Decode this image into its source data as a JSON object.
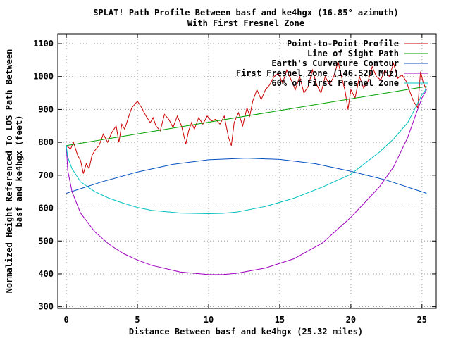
{
  "chart_data": {
    "type": "line",
    "title": [
      "SPLAT! Path Profile Between basf and ke4hgx (16.85° azimuth)",
      "With First Fresnel Zone"
    ],
    "xlabel": "Distance Between basf and ke4hgx (25.32 miles)",
    "ylabel": [
      "Normalized Height Referenced To LOS Path Between",
      "basf and ke4hgx (feet)"
    ],
    "xlim": [
      -0.6,
      26.0
    ],
    "ylim": [
      295,
      1130
    ],
    "xticks": [
      0,
      5,
      10,
      15,
      20,
      25
    ],
    "yticks": [
      300,
      400,
      500,
      600,
      700,
      800,
      900,
      1000,
      1100
    ],
    "grid": true,
    "legend_position": "top-right",
    "series": [
      {
        "name": "Point-to-Point Profile",
        "color": "#cc0000",
        "x": [
          0,
          0.3,
          0.5,
          0.8,
          1.0,
          1.2,
          1.4,
          1.6,
          1.8,
          2.0,
          2.3,
          2.6,
          2.9,
          3.2,
          3.5,
          3.7,
          3.9,
          4.1,
          4.4,
          4.6,
          4.8,
          5.0,
          5.3,
          5.6,
          5.9,
          6.1,
          6.3,
          6.6,
          6.9,
          7.2,
          7.5,
          7.8,
          8.1,
          8.4,
          8.6,
          8.8,
          9.0,
          9.3,
          9.6,
          9.9,
          10.2,
          10.5,
          10.8,
          11.1,
          11.4,
          11.6,
          11.8,
          12.1,
          12.4,
          12.7,
          12.9,
          13.1,
          13.4,
          13.7,
          14.0,
          14.3,
          14.6,
          14.9,
          15.2,
          15.5,
          15.8,
          16.1,
          16.4,
          16.7,
          17.0,
          17.3,
          17.6,
          17.9,
          18.2,
          18.5,
          18.8,
          19.1,
          19.4,
          19.6,
          19.8,
          20.0,
          20.3,
          20.6,
          20.9,
          21.2,
          21.5,
          21.8,
          22.1,
          22.4,
          22.7,
          23.0,
          23.3,
          23.6,
          23.9,
          24.1,
          24.4,
          24.7,
          24.9,
          25.1,
          25.32
        ],
        "values": [
          790,
          780,
          800,
          760,
          745,
          705,
          735,
          720,
          760,
          775,
          790,
          825,
          800,
          830,
          850,
          800,
          855,
          840,
          880,
          905,
          915,
          925,
          905,
          880,
          860,
          875,
          850,
          835,
          885,
          870,
          845,
          880,
          850,
          795,
          835,
          860,
          840,
          875,
          855,
          880,
          865,
          870,
          855,
          880,
          815,
          790,
          860,
          890,
          850,
          905,
          880,
          925,
          960,
          930,
          960,
          975,
          1000,
          1010,
          980,
          1020,
          990,
          960,
          1000,
          950,
          970,
          1020,
          975,
          950,
          1000,
          975,
          1000,
          1045,
          990,
          955,
          900,
          960,
          935,
          1000,
          965,
          985,
          1030,
          1000,
          990,
          1020,
          1000,
          1040,
          995,
          1005,
          985,
          960,
          925,
          905,
          1015,
          980,
          960
        ]
      },
      {
        "name": "Line of Sight Path",
        "color": "#00a000",
        "x": [
          0,
          25.32
        ],
        "values": [
          790,
          970
        ]
      },
      {
        "name": "Earth's Curvature Contour",
        "color": "#0050c0",
        "x": [
          0,
          2.5,
          5,
          7.5,
          10,
          12.66,
          15,
          17.5,
          20,
          22.5,
          25.32
        ],
        "values": [
          645,
          680,
          710,
          733,
          747,
          752,
          748,
          735,
          712,
          685,
          645
        ]
      },
      {
        "name": "First Fresnel Zone (146.520 MHz)",
        "color": "#a000c0",
        "x": [
          0,
          0.1,
          0.4,
          1,
          2,
          3,
          4,
          5,
          6,
          8,
          10,
          11,
          12,
          14,
          16,
          18,
          20,
          22,
          23,
          24,
          24.6,
          25,
          25.2,
          25.32
        ],
        "values": [
          790,
          715,
          650,
          585,
          528,
          490,
          462,
          442,
          426,
          406,
          398,
          398,
          402,
          418,
          446,
          494,
          572,
          664,
          725,
          815,
          888,
          935,
          950,
          960
        ]
      },
      {
        "name": "60% of First Fresnel Zone",
        "color": "#00c0c0",
        "x": [
          0,
          0.1,
          0.4,
          1,
          2,
          3,
          4,
          5,
          6,
          8,
          10,
          11,
          12,
          14,
          16,
          18,
          20,
          22,
          23,
          24,
          24.6,
          25,
          25.2,
          25.32
        ],
        "values": [
          790,
          755,
          720,
          680,
          650,
          630,
          615,
          602,
          593,
          585,
          583,
          584,
          588,
          605,
          630,
          664,
          703,
          770,
          810,
          860,
          910,
          945,
          955,
          970
        ]
      }
    ]
  }
}
